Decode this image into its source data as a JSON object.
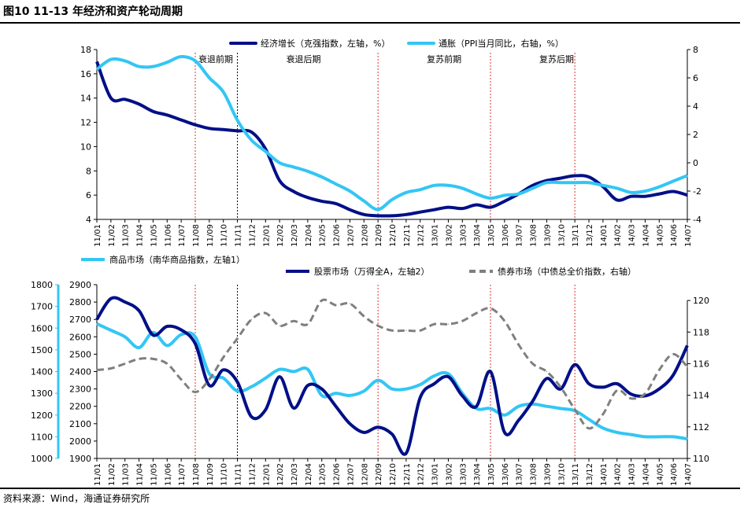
{
  "figure": {
    "title": "图10 11-13 年经济和资产轮动周期",
    "source": "资料来源：Wind，海通证券研究所"
  },
  "chart_data": [
    {
      "type": "line",
      "x": [
        "11/01",
        "11/02",
        "11/03",
        "11/04",
        "11/05",
        "11/06",
        "11/07",
        "11/08",
        "11/09",
        "11/10",
        "11/11",
        "11/12",
        "12/01",
        "12/02",
        "12/03",
        "12/04",
        "12/05",
        "12/06",
        "12/07",
        "12/08",
        "12/09",
        "12/10",
        "12/11",
        "12/12",
        "13/01",
        "13/02",
        "13/03",
        "13/04",
        "13/05",
        "13/06",
        "13/07",
        "13/08",
        "13/09",
        "13/10",
        "13/11",
        "13/12",
        "14/01",
        "14/02",
        "14/03",
        "14/04",
        "14/05",
        "14/06",
        "14/07"
      ],
      "y_left_lim": [
        4,
        18
      ],
      "y_left_ticks": [
        4,
        6,
        8,
        10,
        12,
        14,
        16,
        18
      ],
      "y_right_lim": [
        -4,
        8
      ],
      "y_right_ticks": [
        -4,
        -2,
        0,
        2,
        4,
        6,
        8
      ],
      "phases": [
        {
          "label": "衰退前期",
          "start": "11/08",
          "end": "11/11"
        },
        {
          "label": "衰退后期",
          "start": "11/11",
          "end": "12/09"
        },
        {
          "label": "复苏前期",
          "start": "12/09",
          "end": "13/05"
        },
        {
          "label": "复苏后期",
          "start": "13/05",
          "end": "13/11"
        }
      ],
      "series": [
        {
          "name": "经济增长（克强指数，左轴，%）",
          "axis": "left",
          "color": "#000f87",
          "values": [
            17,
            14,
            13.9,
            13.5,
            12.9,
            12.6,
            12.2,
            11.8,
            11.5,
            11.4,
            11.3,
            11.2,
            9.8,
            7.2,
            6.3,
            5.8,
            5.5,
            5.3,
            4.8,
            4.4,
            4.3,
            4.3,
            4.4,
            4.6,
            4.8,
            5.0,
            4.9,
            5.2,
            5.0,
            5.5,
            6.1,
            6.8,
            7.2,
            7.4,
            7.6,
            7.5,
            6.7,
            5.6,
            5.9,
            5.9,
            6.1,
            6.3,
            6.0
          ]
        },
        {
          "name": "通胀（PPI当月同比，右轴，%）",
          "axis": "right",
          "color": "#33c6f4",
          "values": [
            6.6,
            7.3,
            7.2,
            6.8,
            6.8,
            7.1,
            7.5,
            7.2,
            6.0,
            5.0,
            3.0,
            1.6,
            0.8,
            0,
            -0.3,
            -0.6,
            -1.0,
            -1.5,
            -2.0,
            -2.7,
            -3.3,
            -2.6,
            -2.1,
            -1.9,
            -1.6,
            -1.6,
            -1.8,
            -2.2,
            -2.5,
            -2.3,
            -2.2,
            -1.8,
            -1.4,
            -1.4,
            -1.4,
            -1.4,
            -1.6,
            -1.8,
            -2.1,
            -2.0,
            -1.7,
            -1.3,
            -0.9
          ]
        }
      ]
    },
    {
      "type": "line",
      "x": [
        "11/01",
        "11/02",
        "11/03",
        "11/04",
        "11/05",
        "11/06",
        "11/07",
        "11/08",
        "11/09",
        "11/10",
        "11/11",
        "11/12",
        "12/01",
        "12/02",
        "12/03",
        "12/04",
        "12/05",
        "12/06",
        "12/07",
        "12/08",
        "12/09",
        "12/10",
        "12/11",
        "12/12",
        "13/01",
        "13/02",
        "13/03",
        "13/04",
        "13/05",
        "13/06",
        "13/07",
        "13/08",
        "13/09",
        "13/10",
        "13/11",
        "13/12",
        "14/01",
        "14/02",
        "14/03",
        "14/04",
        "14/05",
        "14/06",
        "14/07"
      ],
      "y_axis1_lim": [
        1000,
        1800
      ],
      "y_axis1_ticks": [
        1000,
        1100,
        1200,
        1300,
        1400,
        1500,
        1600,
        1700,
        1800
      ],
      "y_axis2_lim": [
        1900,
        2900
      ],
      "y_axis2_ticks": [
        1900,
        2000,
        2100,
        2200,
        2300,
        2400,
        2500,
        2600,
        2700,
        2800,
        2900
      ],
      "y_right_lim": [
        110,
        121
      ],
      "y_right_ticks": [
        110,
        112,
        114,
        116,
        118,
        120
      ],
      "phase_boundaries": [
        "11/08",
        "11/11",
        "12/09",
        "13/05",
        "13/11"
      ],
      "series": [
        {
          "name": "商品市场（南华商品指数，左轴1）",
          "axis": "axis1",
          "color": "#33c6f4",
          "dash": false,
          "values": [
            1620,
            1590,
            1560,
            1510,
            1580,
            1520,
            1570,
            1560,
            1390,
            1370,
            1310,
            1330,
            1370,
            1410,
            1400,
            1410,
            1290,
            1300,
            1290,
            1310,
            1360,
            1320,
            1320,
            1340,
            1380,
            1390,
            1300,
            1230,
            1230,
            1200,
            1240,
            1250,
            1240,
            1230,
            1220,
            1180,
            1140,
            1120,
            1110,
            1100,
            1100,
            1100,
            1090
          ]
        },
        {
          "name": "股票市场（万得全A，左轴2）",
          "axis": "axis2",
          "color": "#000f87",
          "dash": false,
          "values": [
            2700,
            2820,
            2800,
            2750,
            2610,
            2660,
            2640,
            2560,
            2320,
            2410,
            2340,
            2140,
            2180,
            2370,
            2190,
            2320,
            2300,
            2200,
            2100,
            2050,
            2080,
            2040,
            1930,
            2250,
            2330,
            2370,
            2260,
            2200,
            2400,
            2050,
            2120,
            2230,
            2360,
            2300,
            2440,
            2330,
            2310,
            2330,
            2270,
            2260,
            2300,
            2380,
            2550
          ]
        },
        {
          "name": "债券市场（中债总全价指数，右轴）",
          "axis": "right",
          "color": "#7f7f7f",
          "dash": true,
          "values": [
            115.6,
            115.7,
            116,
            116.3,
            116.3,
            116,
            115,
            114.2,
            115,
            116.4,
            117.6,
            118.8,
            119.2,
            118.4,
            118.7,
            118.5,
            120,
            119.7,
            119.8,
            119,
            118.4,
            118.1,
            118.1,
            118.1,
            118.5,
            118.5,
            118.7,
            119.2,
            119.5,
            118.7,
            117.2,
            116,
            115.5,
            114.5,
            113.1,
            111.9,
            112.8,
            114.3,
            113.8,
            114.1,
            115.6,
            116.6,
            115.8
          ]
        }
      ]
    }
  ]
}
